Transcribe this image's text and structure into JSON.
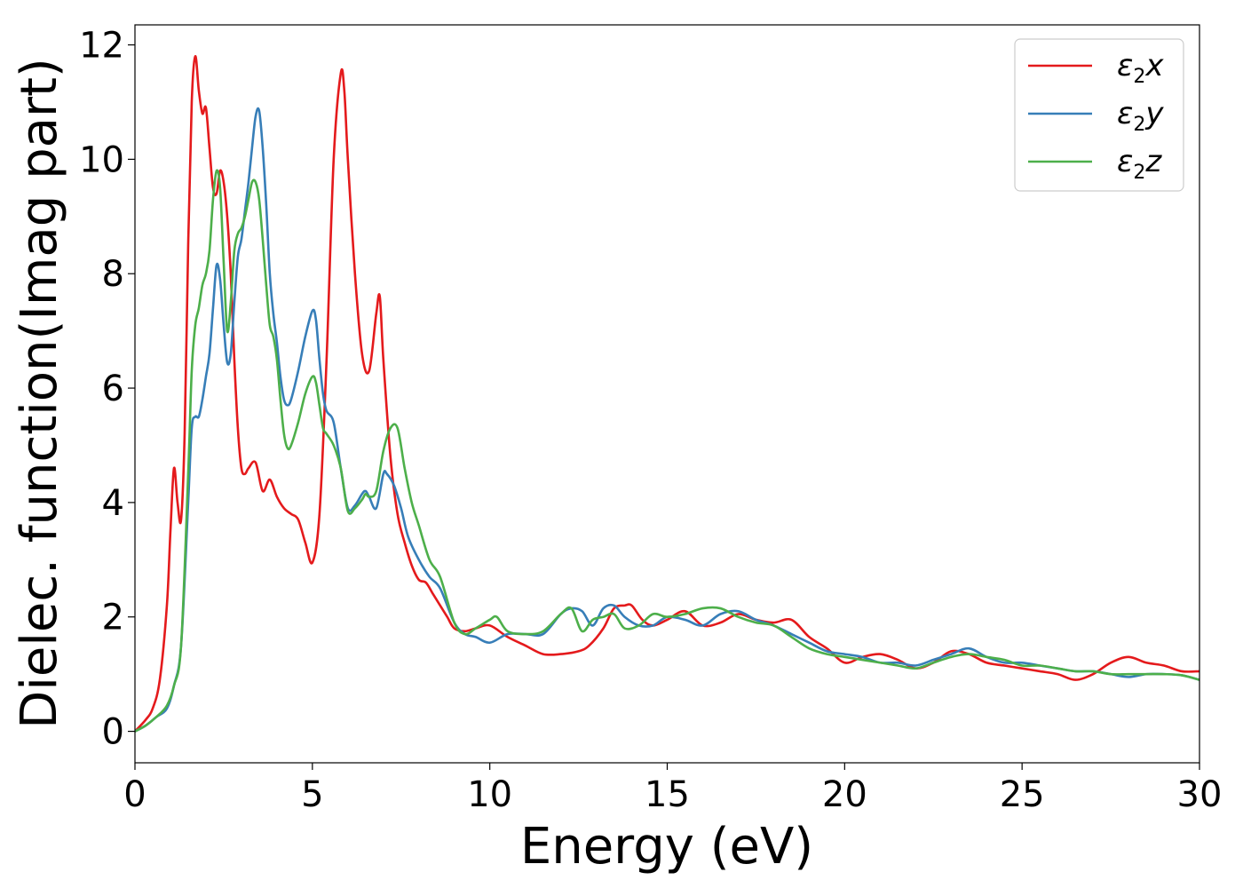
{
  "chart_data": {
    "type": "line",
    "title": "",
    "xlabel": "Energy (eV)",
    "ylabel": "Dielec. function(Imag part)",
    "xlim": [
      0,
      30
    ],
    "ylim": [
      -0.55,
      12.35
    ],
    "xticks": [
      0,
      5,
      10,
      15,
      20,
      25,
      30
    ],
    "yticks": [
      0,
      2,
      4,
      6,
      8,
      10,
      12
    ],
    "grid": false,
    "legend_position": "top-right",
    "series": [
      {
        "name": "ε2x",
        "legend": {
          "base": "ε",
          "sub": "2",
          "var": "x"
        },
        "color": "#e41a1c",
        "x": [
          0,
          0.3,
          0.5,
          0.7,
          0.9,
          1.0,
          1.1,
          1.2,
          1.3,
          1.4,
          1.5,
          1.6,
          1.7,
          1.8,
          1.9,
          2.0,
          2.1,
          2.2,
          2.3,
          2.4,
          2.5,
          2.6,
          2.7,
          2.8,
          2.9,
          3.0,
          3.1,
          3.2,
          3.4,
          3.6,
          3.8,
          4.0,
          4.2,
          4.4,
          4.6,
          4.8,
          5.0,
          5.2,
          5.4,
          5.6,
          5.8,
          5.9,
          6.0,
          6.2,
          6.4,
          6.6,
          6.8,
          6.9,
          7.0,
          7.2,
          7.4,
          7.6,
          7.8,
          8.0,
          8.2,
          8.4,
          8.6,
          8.8,
          9.0,
          9.3,
          9.6,
          10.0,
          10.5,
          11.0,
          11.5,
          12.0,
          12.5,
          12.8,
          13.2,
          13.5,
          13.8,
          14.0,
          14.3,
          14.6,
          15.0,
          15.5,
          16.0,
          16.5,
          17.0,
          17.5,
          18.0,
          18.5,
          19.0,
          19.5,
          20.0,
          20.5,
          21.0,
          21.5,
          22.0,
          22.5,
          23.0,
          23.5,
          24.0,
          24.5,
          25.0,
          25.5,
          26.0,
          26.5,
          27.0,
          27.5,
          28.0,
          28.5,
          29.0,
          29.5,
          30.0
        ],
        "y": [
          0,
          0.2,
          0.4,
          0.9,
          2.2,
          3.5,
          4.6,
          4.0,
          3.7,
          5.2,
          8.5,
          11.0,
          11.8,
          11.2,
          10.8,
          10.9,
          10.2,
          9.5,
          9.4,
          9.8,
          9.6,
          9.0,
          8.0,
          6.5,
          5.3,
          4.6,
          4.5,
          4.6,
          4.7,
          4.2,
          4.4,
          4.1,
          3.9,
          3.8,
          3.7,
          3.3,
          2.95,
          3.8,
          6.5,
          10.0,
          11.5,
          11.2,
          10.0,
          8.0,
          6.6,
          6.3,
          7.3,
          7.6,
          6.5,
          4.8,
          3.8,
          3.3,
          2.9,
          2.65,
          2.6,
          2.4,
          2.2,
          2.0,
          1.8,
          1.75,
          1.8,
          1.85,
          1.65,
          1.5,
          1.35,
          1.35,
          1.4,
          1.5,
          1.8,
          2.15,
          2.2,
          2.2,
          1.95,
          1.85,
          1.95,
          2.1,
          1.85,
          1.9,
          2.05,
          1.95,
          1.9,
          1.95,
          1.65,
          1.45,
          1.2,
          1.3,
          1.35,
          1.25,
          1.1,
          1.2,
          1.4,
          1.35,
          1.2,
          1.15,
          1.1,
          1.05,
          1.0,
          0.9,
          1.0,
          1.2,
          1.3,
          1.2,
          1.15,
          1.05,
          1.05
        ]
      },
      {
        "name": "ε2y",
        "legend": {
          "base": "ε",
          "sub": "2",
          "var": "y"
        },
        "color": "#377eb8",
        "x": [
          0,
          0.3,
          0.6,
          0.9,
          1.1,
          1.3,
          1.5,
          1.6,
          1.7,
          1.8,
          1.9,
          2.0,
          2.1,
          2.2,
          2.3,
          2.4,
          2.5,
          2.6,
          2.7,
          2.8,
          2.9,
          3.0,
          3.1,
          3.2,
          3.3,
          3.4,
          3.5,
          3.6,
          3.7,
          3.8,
          3.9,
          4.0,
          4.1,
          4.2,
          4.3,
          4.4,
          4.6,
          4.8,
          5.0,
          5.1,
          5.2,
          5.3,
          5.4,
          5.6,
          5.8,
          6.0,
          6.2,
          6.4,
          6.5,
          6.6,
          6.8,
          7.0,
          7.1,
          7.3,
          7.5,
          7.7,
          8.0,
          8.3,
          8.6,
          9.0,
          9.3,
          9.6,
          10.0,
          10.5,
          11.0,
          11.5,
          12.0,
          12.3,
          12.6,
          12.9,
          13.2,
          13.5,
          13.8,
          14.2,
          14.6,
          15.0,
          15.5,
          16.0,
          16.5,
          17.0,
          17.5,
          18.0,
          18.5,
          19.0,
          19.5,
          20.0,
          20.5,
          21.0,
          21.5,
          22.0,
          22.5,
          23.0,
          23.5,
          24.0,
          24.5,
          25.0,
          25.5,
          26.0,
          26.5,
          27.0,
          27.5,
          28.0,
          28.5,
          29.0,
          29.5,
          30.0
        ],
        "y": [
          0,
          0.1,
          0.25,
          0.4,
          0.8,
          1.5,
          4.0,
          5.3,
          5.5,
          5.5,
          5.8,
          6.2,
          6.6,
          7.4,
          8.15,
          7.9,
          7.1,
          6.45,
          6.6,
          7.5,
          8.3,
          8.6,
          9.1,
          9.6,
          10.2,
          10.75,
          10.85,
          10.2,
          9.2,
          8.0,
          7.3,
          6.8,
          6.2,
          5.8,
          5.7,
          5.8,
          6.3,
          6.9,
          7.35,
          7.2,
          6.5,
          5.9,
          5.6,
          5.4,
          4.6,
          3.9,
          3.95,
          4.15,
          4.2,
          4.1,
          3.9,
          4.5,
          4.5,
          4.3,
          3.9,
          3.4,
          3.0,
          2.7,
          2.5,
          1.9,
          1.7,
          1.65,
          1.55,
          1.7,
          1.7,
          1.7,
          2.05,
          2.15,
          2.1,
          1.85,
          2.15,
          2.2,
          2.0,
          1.85,
          1.85,
          2.0,
          1.95,
          1.85,
          2.05,
          2.1,
          1.95,
          1.85,
          1.7,
          1.55,
          1.4,
          1.35,
          1.3,
          1.2,
          1.2,
          1.15,
          1.25,
          1.35,
          1.45,
          1.3,
          1.2,
          1.2,
          1.15,
          1.1,
          1.05,
          1.05,
          1.0,
          0.95,
          1.0,
          1.0,
          0.98,
          0.9
        ]
      },
      {
        "name": "ε2z",
        "legend": {
          "base": "ε",
          "sub": "2",
          "var": "z"
        },
        "color": "#4daf4a",
        "x": [
          0,
          0.3,
          0.6,
          0.9,
          1.1,
          1.3,
          1.5,
          1.6,
          1.7,
          1.8,
          1.9,
          2.0,
          2.1,
          2.2,
          2.3,
          2.4,
          2.5,
          2.6,
          2.7,
          2.8,
          2.9,
          3.0,
          3.1,
          3.2,
          3.3,
          3.4,
          3.5,
          3.6,
          3.7,
          3.8,
          3.9,
          4.0,
          4.1,
          4.2,
          4.3,
          4.4,
          4.6,
          4.8,
          5.0,
          5.1,
          5.2,
          5.3,
          5.4,
          5.6,
          5.8,
          6.0,
          6.2,
          6.4,
          6.5,
          6.6,
          6.8,
          7.0,
          7.2,
          7.4,
          7.6,
          7.8,
          8.0,
          8.3,
          8.6,
          9.0,
          9.3,
          9.6,
          10.0,
          10.2,
          10.5,
          11.0,
          11.5,
          12.0,
          12.3,
          12.6,
          12.9,
          13.2,
          13.5,
          13.8,
          14.2,
          14.6,
          15.0,
          15.5,
          16.0,
          16.5,
          17.0,
          17.5,
          18.0,
          18.5,
          19.0,
          19.5,
          20.0,
          20.5,
          21.0,
          21.5,
          22.0,
          22.5,
          23.0,
          23.5,
          24.0,
          24.5,
          25.0,
          25.5,
          26.0,
          26.5,
          27.0,
          27.5,
          28.0,
          28.5,
          29.0,
          29.5,
          30.0
        ],
        "y": [
          0,
          0.1,
          0.25,
          0.45,
          0.8,
          1.5,
          4.5,
          6.3,
          7.1,
          7.4,
          7.8,
          8.0,
          8.4,
          9.3,
          9.8,
          9.5,
          8.2,
          7.0,
          7.5,
          8.4,
          8.7,
          8.8,
          9.0,
          9.3,
          9.6,
          9.6,
          9.3,
          8.6,
          7.8,
          7.1,
          6.9,
          6.5,
          5.8,
          5.2,
          4.95,
          5.0,
          5.4,
          5.9,
          6.2,
          6.1,
          5.7,
          5.3,
          5.2,
          5.0,
          4.6,
          3.85,
          3.9,
          4.05,
          4.15,
          4.1,
          4.2,
          4.9,
          5.3,
          5.3,
          4.6,
          4.0,
          3.6,
          3.0,
          2.7,
          1.9,
          1.7,
          1.8,
          1.95,
          2.0,
          1.75,
          1.7,
          1.75,
          2.05,
          2.15,
          1.75,
          1.95,
          2.0,
          2.05,
          1.8,
          1.85,
          2.05,
          2.0,
          2.05,
          2.15,
          2.15,
          2.0,
          1.9,
          1.85,
          1.65,
          1.45,
          1.35,
          1.3,
          1.25,
          1.2,
          1.15,
          1.1,
          1.2,
          1.3,
          1.35,
          1.3,
          1.25,
          1.15,
          1.15,
          1.1,
          1.05,
          1.05,
          1.0,
          1.0,
          1.0,
          1.0,
          0.98,
          0.9
        ]
      }
    ]
  }
}
